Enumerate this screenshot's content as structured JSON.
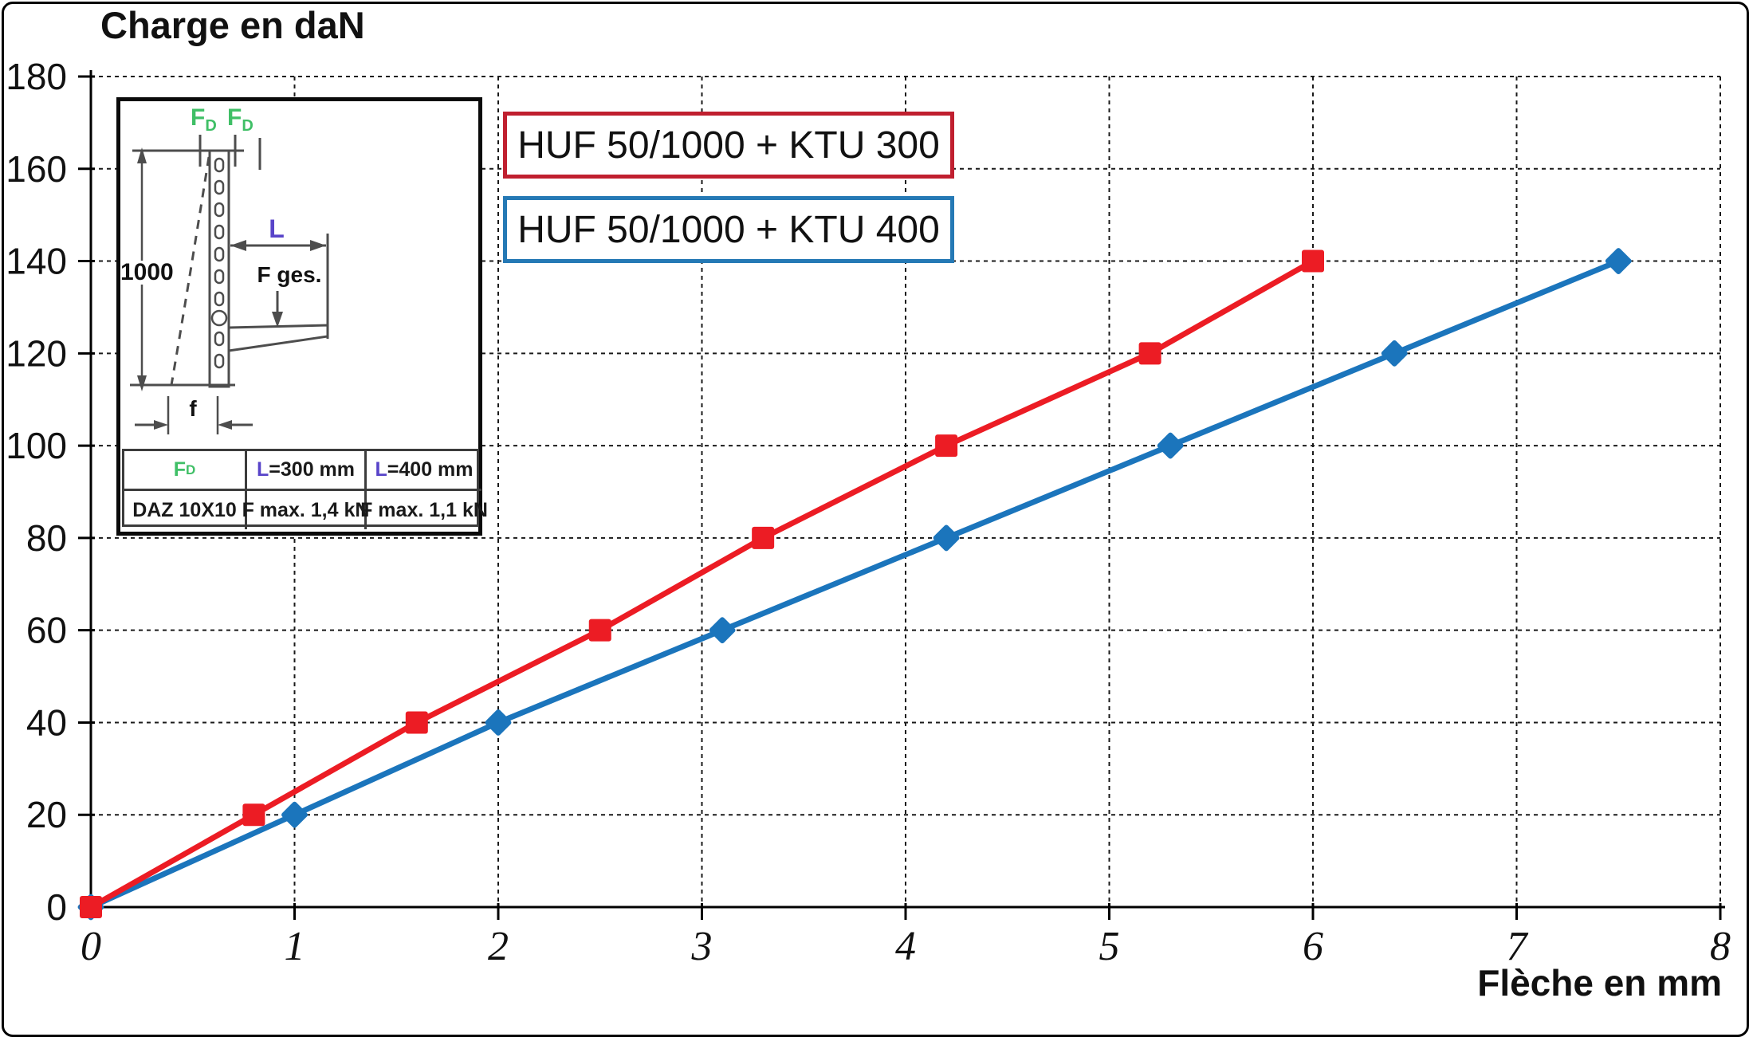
{
  "chart_data": {
    "type": "line",
    "title": "Charge en daN",
    "xlabel": "Flèche en mm",
    "ylabel": "Charge en daN",
    "xlim": [
      0,
      8
    ],
    "ylim": [
      0,
      180
    ],
    "xticks": [
      0,
      1,
      2,
      3,
      4,
      5,
      6,
      7,
      8
    ],
    "yticks": [
      0,
      20,
      40,
      60,
      80,
      100,
      120,
      140,
      160,
      180
    ],
    "grid": "dashed, both axes",
    "legend_position": "inside top, right of inset diagram",
    "series": [
      {
        "name": "HUF 50/1000 + KTU 300",
        "color": "#ec1c24",
        "legend_border_color": "#c01f2f",
        "marker": "square",
        "points": [
          [
            0,
            0
          ],
          [
            0.8,
            20
          ],
          [
            1.6,
            40
          ],
          [
            2.5,
            60
          ],
          [
            3.3,
            80
          ],
          [
            4.2,
            100
          ],
          [
            5.2,
            120
          ],
          [
            6.0,
            140
          ]
        ]
      },
      {
        "name": "HUF 50/1000 + KTU 400",
        "color": "#1b75bc",
        "legend_border_color": "#2579b5",
        "marker": "diamond",
        "points": [
          [
            0,
            0
          ],
          [
            1.0,
            20
          ],
          [
            2.0,
            40
          ],
          [
            3.1,
            60
          ],
          [
            4.2,
            80
          ],
          [
            5.3,
            100
          ],
          [
            6.4,
            120
          ],
          [
            7.5,
            140
          ]
        ]
      }
    ]
  },
  "inset": {
    "force_top_label_main": "F",
    "force_top_label_sub": "D",
    "height_dim_label": "1000",
    "length_dim_label": "L",
    "total_force_label": "F ges.",
    "deflection_dim_label": "f",
    "colors": {
      "green": "#3fbf66",
      "purple": "#5844c9"
    },
    "table": {
      "header": {
        "fd_main": "F",
        "fd_sub": "D",
        "l300_prefix": "L",
        "l300_rest": "=300 mm",
        "l400_prefix": "L",
        "l400_rest": "=400 mm"
      },
      "row": [
        "DAZ 10X10",
        "F max. 1,4 kN",
        "F max. 1,1 kN"
      ]
    }
  }
}
